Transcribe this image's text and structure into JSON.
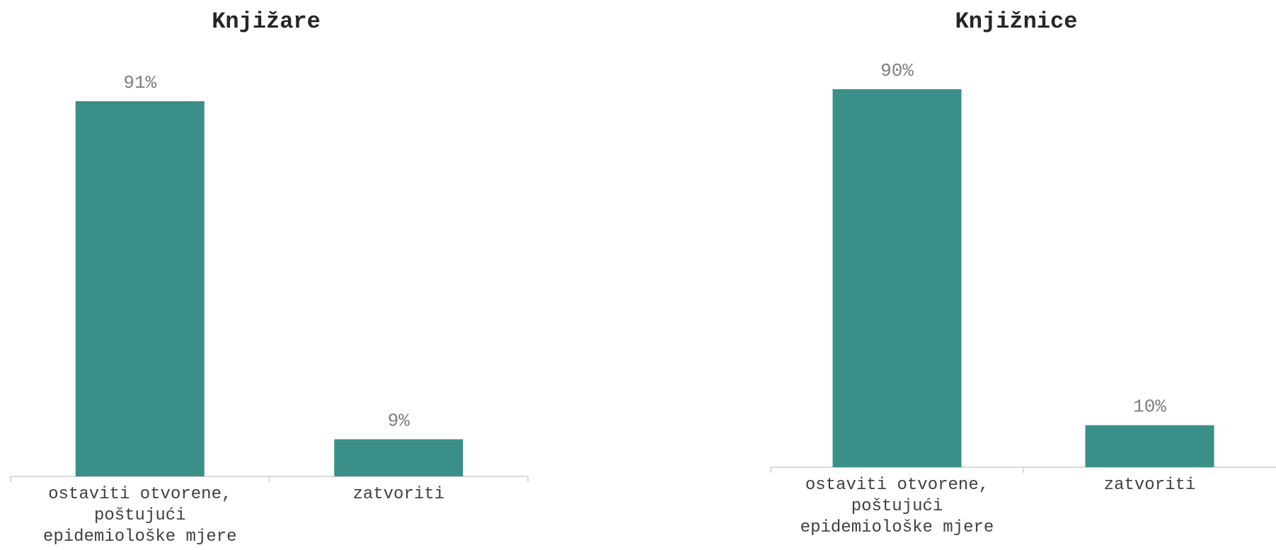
{
  "chart_data": [
    {
      "type": "bar",
      "title": "Knjižare",
      "categories": [
        "ostaviti otvorene, poštujući epidemiološke mjere",
        "zatvoriti"
      ],
      "category_lines": [
        [
          "ostaviti otvorene,",
          "poštujući",
          "epidemiološke mjere"
        ],
        [
          "zatvoriti"
        ]
      ],
      "values": [
        91,
        9
      ],
      "value_labels": [
        "91%",
        "9%"
      ],
      "ylim": [
        0,
        100
      ],
      "grid": false,
      "color": "#3a8f88"
    },
    {
      "type": "bar",
      "title": "Knjižnice",
      "categories": [
        "ostaviti otvorene, poštujući epidemiološke mjere",
        "zatvoriti"
      ],
      "category_lines": [
        [
          "ostaviti otvorene,",
          "poštujući",
          "epidemiološke mjere"
        ],
        [
          "zatvoriti"
        ]
      ],
      "values": [
        90,
        10
      ],
      "value_labels": [
        "90%",
        "10%"
      ],
      "ylim": [
        0,
        100
      ],
      "grid": false,
      "color": "#3a8f88"
    }
  ]
}
